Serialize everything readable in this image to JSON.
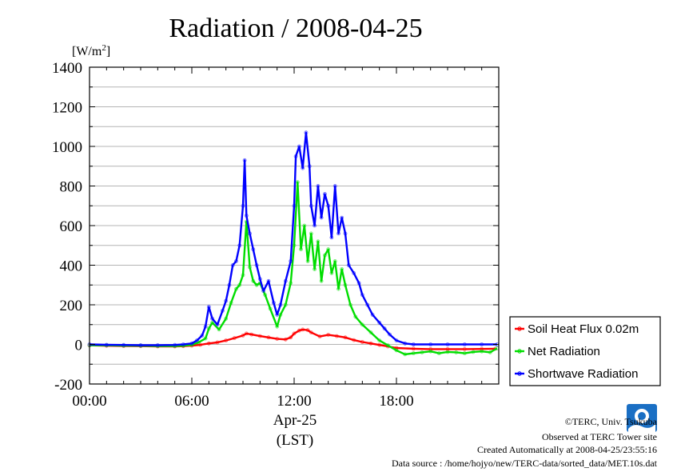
{
  "chart_data": {
    "type": "line",
    "title": "Radiation / 2008-04-25",
    "ylabel_unit": "[W/m",
    "ylabel_unit_sup": "2",
    "ylabel_unit_close": "]",
    "xlabel_date": "Apr-25",
    "xlabel_tz": "(LST)",
    "ylim": [
      -200,
      1400
    ],
    "xlim": [
      0,
      24
    ],
    "yticks": [
      {
        "v": -200,
        "label": "-200"
      },
      {
        "v": 0,
        "label": "0"
      },
      {
        "v": 200,
        "label": "200"
      },
      {
        "v": 400,
        "label": "400"
      },
      {
        "v": 600,
        "label": "600"
      },
      {
        "v": 800,
        "label": "800"
      },
      {
        "v": 1000,
        "label": "1000"
      },
      {
        "v": 1200,
        "label": "1200"
      },
      {
        "v": 1400,
        "label": "1400"
      }
    ],
    "xticks": [
      {
        "v": 0,
        "label": "00:00"
      },
      {
        "v": 6,
        "label": "06:00"
      },
      {
        "v": 12,
        "label": "12:00"
      },
      {
        "v": 18,
        "label": "18:00"
      }
    ],
    "grid": true,
    "legend_position": "right",
    "series": [
      {
        "name": "Soil Heat Flux 0.02m",
        "color": "#ff0000",
        "x": [
          0,
          1,
          2,
          3,
          4,
          5,
          5.5,
          6,
          6.5,
          7,
          7.5,
          8,
          8.5,
          9,
          9.2,
          9.5,
          10,
          10.5,
          11,
          11.5,
          11.8,
          12,
          12.3,
          12.5,
          12.8,
          13,
          13.5,
          14,
          14.5,
          15,
          15.5,
          16,
          16.5,
          17,
          17.5,
          18,
          19,
          20,
          21,
          22,
          23,
          23.8
        ],
        "values": [
          -5,
          -7,
          -8,
          -9,
          -10,
          -10,
          -9,
          -6,
          -2,
          5,
          10,
          20,
          32,
          45,
          55,
          50,
          42,
          35,
          28,
          25,
          35,
          55,
          70,
          75,
          72,
          60,
          40,
          48,
          42,
          35,
          22,
          12,
          5,
          -3,
          -10,
          -18,
          -22,
          -24,
          -24,
          -24,
          -23,
          -22
        ]
      },
      {
        "name": "Net Radiation",
        "color": "#00dd00",
        "x": [
          0,
          1,
          2,
          3,
          4,
          5,
          5.5,
          6,
          6.4,
          6.8,
          7,
          7.2,
          7.6,
          8,
          8.3,
          8.6,
          8.8,
          9,
          9.2,
          9.4,
          9.6,
          9.8,
          10,
          10.3,
          10.6,
          11,
          11.2,
          11.5,
          11.8,
          12,
          12.2,
          12.4,
          12.6,
          12.8,
          13,
          13.2,
          13.4,
          13.6,
          13.8,
          14,
          14.2,
          14.4,
          14.6,
          14.8,
          15,
          15.3,
          15.6,
          16,
          16.5,
          17,
          17.5,
          18,
          18.5,
          19,
          19.5,
          20,
          20.5,
          21,
          21.5,
          22,
          22.5,
          23,
          23.5,
          23.9
        ],
        "values": [
          -5,
          -5,
          -6,
          -7,
          -8,
          -8,
          -6,
          -2,
          10,
          30,
          80,
          110,
          75,
          130,
          210,
          280,
          300,
          350,
          620,
          390,
          320,
          300,
          310,
          250,
          180,
          90,
          150,
          200,
          310,
          500,
          820,
          480,
          600,
          420,
          560,
          380,
          520,
          320,
          450,
          480,
          360,
          420,
          280,
          380,
          300,
          200,
          140,
          100,
          60,
          20,
          -5,
          -30,
          -50,
          -45,
          -40,
          -35,
          -45,
          -38,
          -40,
          -45,
          -38,
          -35,
          -40,
          -20
        ]
      },
      {
        "name": "Shortwave Radiation",
        "color": "#0000ff",
        "x": [
          0,
          1,
          2,
          3,
          4,
          5,
          5.5,
          6,
          6.3,
          6.6,
          6.8,
          7,
          7.2,
          7.5,
          7.8,
          8,
          8.2,
          8.4,
          8.6,
          8.8,
          9,
          9.1,
          9.2,
          9.4,
          9.6,
          9.8,
          10,
          10.2,
          10.5,
          10.8,
          11,
          11.2,
          11.5,
          11.8,
          12,
          12.1,
          12.3,
          12.5,
          12.7,
          12.9,
          13,
          13.2,
          13.4,
          13.6,
          13.8,
          14,
          14.2,
          14.4,
          14.6,
          14.8,
          15,
          15.2,
          15.5,
          15.8,
          16,
          16.3,
          16.6,
          17,
          17.3,
          17.6,
          18,
          18.5,
          19,
          20,
          21,
          22,
          23,
          23.9
        ],
        "values": [
          0,
          -2,
          -3,
          -4,
          -4,
          -3,
          0,
          5,
          20,
          45,
          90,
          190,
          130,
          100,
          170,
          220,
          300,
          400,
          420,
          500,
          700,
          930,
          650,
          560,
          480,
          400,
          330,
          270,
          320,
          210,
          150,
          200,
          320,
          420,
          700,
          950,
          1000,
          890,
          1070,
          900,
          700,
          600,
          800,
          640,
          760,
          700,
          540,
          800,
          560,
          640,
          560,
          400,
          360,
          310,
          250,
          200,
          150,
          110,
          80,
          50,
          20,
          5,
          0,
          0,
          0,
          0,
          0,
          0
        ]
      }
    ]
  },
  "credits": {
    "copyright": "©TERC, Univ. Tsukuba",
    "observed": "Observed at TERC Tower site",
    "created": "Created Automatically at 2008-04-25/23:55:16",
    "source": "Data source : /home/hojyo/new/TERC-data/sorted_data/MET.10s.dat",
    "logo_text": "TERC",
    "logo_color": "#1a6fc4"
  }
}
